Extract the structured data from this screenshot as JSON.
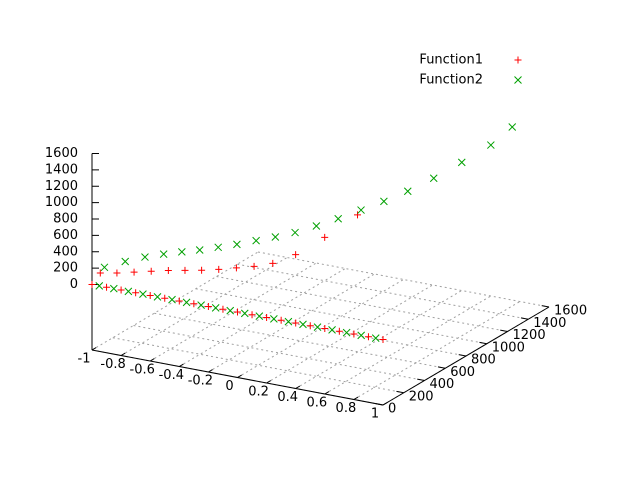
{
  "chart_data": {
    "type": "scatter3d",
    "xlim": [
      -1,
      1
    ],
    "xticks": [
      -1,
      -0.8,
      -0.6,
      -0.4,
      -0.2,
      0,
      0.2,
      0.4,
      0.6,
      0.8,
      1
    ],
    "ylim": [
      0,
      1600
    ],
    "yticks": [
      0,
      200,
      400,
      600,
      800,
      1000,
      1200,
      1400,
      1600
    ],
    "zlim": [
      0,
      1600
    ],
    "zticks": [
      0,
      200,
      400,
      600,
      800,
      1000,
      1200,
      1400,
      1600
    ],
    "grid": true,
    "legend": "top-right",
    "series": [
      {
        "name": "Function1",
        "color": "#ff0000",
        "marker": "plus",
        "x": [
          -1,
          -0.9,
          -0.8,
          -0.7,
          -0.6,
          -0.5,
          -0.4,
          -0.3,
          -0.2,
          -0.1,
          0,
          0.1,
          0.2,
          0.3,
          0.4,
          0.5,
          0.6,
          0.7,
          0.8,
          0.9,
          1,
          -1,
          -0.9,
          -0.8,
          -0.7,
          -0.6,
          -0.5,
          -0.4,
          -0.3,
          -0.2,
          -0.1,
          0,
          0.1,
          0.2,
          0.3
        ],
        "y": [
          0,
          0,
          0,
          0,
          0,
          0,
          0,
          0,
          0,
          0,
          0,
          0,
          0,
          0,
          0,
          0,
          0,
          0,
          0,
          0,
          0,
          80,
          100,
          125,
          150,
          175,
          195,
          215,
          240,
          270,
          300,
          340,
          420,
          560,
          736
        ],
        "z": [
          0,
          0,
          0,
          0,
          0,
          0,
          0,
          0,
          0,
          0,
          0,
          0,
          0,
          0,
          0,
          0,
          0,
          0,
          0,
          0,
          0,
          80,
          100,
          125,
          150,
          175,
          195,
          215,
          240,
          270,
          300,
          340,
          420,
          560,
          736
        ]
      },
      {
        "name": "Function2",
        "color": "#00a000",
        "marker": "cross",
        "x": [
          -0.95,
          -0.85,
          -0.75,
          -0.65,
          -0.55,
          -0.45,
          -0.35,
          -0.25,
          -0.15,
          -0.05,
          0.05,
          0.15,
          0.25,
          0.35,
          0.45,
          0.55,
          0.65,
          0.75,
          0.85,
          0.95,
          -1,
          -0.9,
          -0.8,
          -0.7,
          -0.6,
          -0.5,
          -0.4,
          -0.3,
          -0.2,
          -0.1,
          0,
          0.1,
          0.2,
          0.3,
          0.4,
          0.5,
          0.6,
          0.7,
          0.8,
          0.85
        ],
        "y": [
          0,
          0,
          0,
          0,
          0,
          0,
          0,
          0,
          0,
          0,
          0,
          0,
          0,
          0,
          0,
          0,
          0,
          0,
          0,
          0,
          120,
          180,
          230,
          270,
          305,
          337,
          375,
          415,
          460,
          505,
          555,
          620,
          690,
          770,
          850,
          940,
          1050,
          1180,
          1320,
          1456
        ],
        "z": [
          0,
          0,
          0,
          0,
          0,
          0,
          0,
          0,
          0,
          0,
          0,
          0,
          0,
          0,
          0,
          0,
          0,
          0,
          0,
          0,
          120,
          180,
          230,
          270,
          305,
          337,
          375,
          415,
          460,
          505,
          555,
          620,
          690,
          770,
          850,
          940,
          1050,
          1180,
          1320,
          1456
        ]
      }
    ]
  }
}
